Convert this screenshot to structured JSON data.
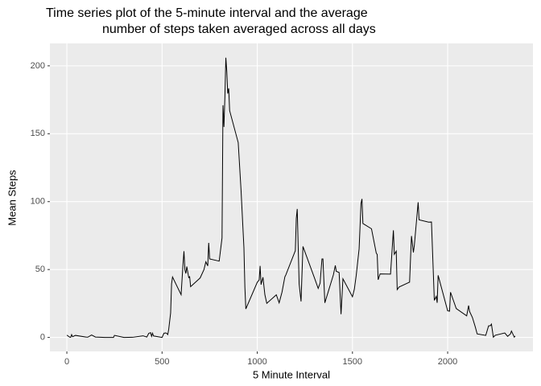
{
  "chart_data": {
    "type": "line",
    "title": [
      "Time series plot of the 5-minute interval and the average",
      "number of steps taken averaged across all days"
    ],
    "x_label": "5 Minute Interval",
    "y_label": "Mean Steps",
    "x": [
      0,
      15,
      20,
      25,
      30,
      45,
      100,
      110,
      130,
      150,
      200,
      245,
      250,
      300,
      345,
      400,
      420,
      430,
      440,
      445,
      450,
      455,
      500,
      510,
      520,
      525,
      530,
      535,
      545,
      550,
      555,
      600,
      610,
      615,
      620,
      625,
      630,
      640,
      645,
      650,
      700,
      720,
      730,
      740,
      745,
      750,
      800,
      815,
      820,
      825,
      830,
      835,
      840,
      845,
      850,
      855,
      900,
      915,
      930,
      935,
      940,
      1000,
      1010,
      1015,
      1020,
      1030,
      1040,
      1050,
      1100,
      1115,
      1130,
      1145,
      1150,
      1200,
      1205,
      1210,
      1220,
      1230,
      1240,
      1300,
      1320,
      1330,
      1340,
      1345,
      1355,
      1400,
      1410,
      1415,
      1430,
      1440,
      1450,
      1500,
      1510,
      1520,
      1535,
      1545,
      1550,
      1555,
      1600,
      1625,
      1630,
      1635,
      1645,
      1700,
      1715,
      1720,
      1730,
      1735,
      1745,
      1800,
      1805,
      1810,
      1820,
      1825,
      1845,
      1850,
      1900,
      1915,
      1930,
      1940,
      1945,
      1950,
      2000,
      2010,
      2015,
      2030,
      2045,
      2100,
      2110,
      2115,
      2130,
      2145,
      2155,
      2200,
      2215,
      2225,
      2230,
      2240,
      2250,
      2300,
      2315,
      2330,
      2335,
      2340,
      2350,
      2355
    ],
    "series": [
      {
        "color": "#000000",
        "values": [
          1.7,
          0.2,
          0.1,
          2.1,
          0.5,
          1.5,
          0.3,
          0.2,
          1.8,
          0.3,
          0,
          0,
          1.5,
          0,
          0.1,
          1.2,
          0.3,
          3,
          3.5,
          0.8,
          3.1,
          1.1,
          0,
          3.1,
          3.3,
          2.9,
          2.1,
          6,
          18,
          39.5,
          44.5,
          31.5,
          53.8,
          63.5,
          49.9,
          47.1,
          52.2,
          44.1,
          44.7,
          37.4,
          43.8,
          49.9,
          55.7,
          52.7,
          69.6,
          57.8,
          56.2,
          73.3,
          171,
          155,
          177,
          206,
          195.9,
          179.6,
          183.4,
          167,
          143.5,
          108,
          66,
          37,
          21,
          40.6,
          42.4,
          52.7,
          38.9,
          44.3,
          31.5,
          25.1,
          31.4,
          25.5,
          33.4,
          44.6,
          46,
          63.9,
          87.6,
          94.6,
          39.3,
          26.5,
          67,
          44,
          36.1,
          40,
          57.8,
          57.8,
          25.5,
          46.2,
          53,
          48.7,
          47.8,
          17.1,
          43.2,
          30,
          35.5,
          45.9,
          65.3,
          98.7,
          102,
          83.9,
          80,
          62.1,
          61.1,
          42.5,
          46.8,
          46.6,
          78.9,
          61.2,
          63.5,
          35.2,
          37.1,
          40.7,
          58,
          74.7,
          62.6,
          67.8,
          99.5,
          86.6,
          84.9,
          85,
          27.3,
          30.2,
          25.5,
          45.7,
          19.6,
          19.3,
          33.3,
          27.3,
          21.3,
          15.9,
          23.5,
          19.2,
          14.7,
          7.8,
          2.6,
          1.5,
          8.5,
          8.7,
          9.8,
          0.2,
          1.6,
          3.3,
          0.8,
          2.6,
          4.7,
          3.3,
          0.2,
          1.1
        ]
      }
    ],
    "xlim": [
      -89,
      2448
    ],
    "ylim": [
      -10.3,
      216.5
    ],
    "xticks": [
      0,
      500,
      1000,
      1500,
      2000
    ],
    "yticks": [
      0,
      50,
      100,
      150,
      200
    ],
    "grid": true
  }
}
